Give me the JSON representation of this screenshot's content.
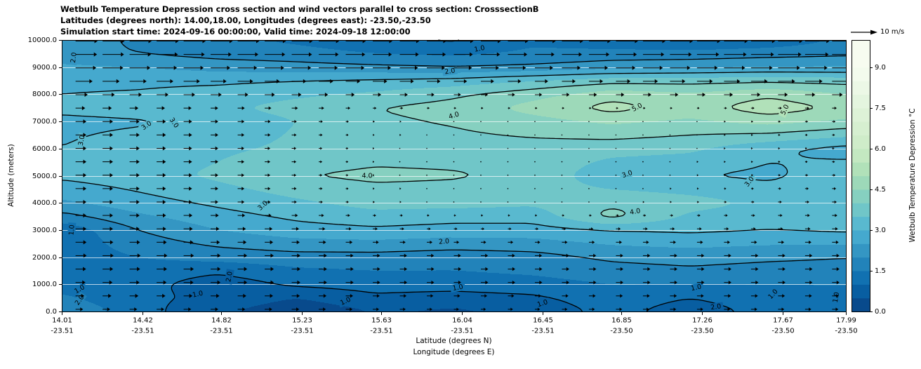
{
  "title": {
    "line1": "Wetbulb Temperature Depression cross section and wind vectors parallel to cross section: CrosssectionB",
    "line2": "Latitudes (degrees north): 14.00,18.00, Longitudes (degrees east): -23.50,-23.50",
    "line3": "Simulation start time: 2024-09-16 00:00:00, Valid time: 2024-09-18 12:00:00"
  },
  "axes": {
    "ylabel": "Altitude (meters)",
    "xlabel_line1": "Latitude (degrees N)",
    "xlabel_line2": "Longitude (degrees E)",
    "y_ticks": [
      "0.0",
      "1000.0",
      "2000.0",
      "3000.0",
      "4000.0",
      "5000.0",
      "6000.0",
      "7000.0",
      "8000.0",
      "9000.0",
      "10000.0"
    ],
    "y_tick_values": [
      0,
      1000,
      2000,
      3000,
      4000,
      5000,
      6000,
      7000,
      8000,
      9000,
      10000
    ],
    "x_ticks_lat": [
      "14.01",
      "14.42",
      "14.82",
      "15.23",
      "15.63",
      "16.04",
      "16.45",
      "16.85",
      "17.26",
      "17.67",
      "17.99"
    ],
    "x_ticks_lon": [
      "-23.51",
      "-23.51",
      "-23.51",
      "-23.51",
      "-23.51",
      "-23.51",
      "-23.51",
      "-23.50",
      "-23.50",
      "-23.50",
      "-23.50"
    ],
    "x_tick_values": [
      14.01,
      14.42,
      14.82,
      15.23,
      15.63,
      16.04,
      16.45,
      16.85,
      17.26,
      17.67,
      17.99
    ]
  },
  "colorbar": {
    "label": "Wetbulb Temperature Depression °C",
    "ticks": [
      "0.0",
      "1.5",
      "3.0",
      "4.5",
      "6.0",
      "7.5",
      "9.0"
    ],
    "tick_values": [
      0,
      1.5,
      3.0,
      4.5,
      6.0,
      7.5,
      9.0
    ],
    "range": [
      0,
      10
    ]
  },
  "quiver_legend": {
    "label": "10 m/s",
    "speed_ms": 10
  },
  "chart_data": {
    "type": "heatmap",
    "title": "Wetbulb Temperature Depression cross section and wind vectors parallel to cross section: CrosssectionB",
    "xlabel": "Latitude (degrees N) / Longitude (degrees E)",
    "ylabel": "Altitude (meters)",
    "colorbar_label": "Wetbulb Temperature Depression °C",
    "x_range": [
      14.01,
      17.99
    ],
    "y_range": [
      0,
      10000
    ],
    "fill_level_step": 0.5,
    "contour_levels": [
      1,
      2,
      3,
      4,
      5
    ],
    "colormap": [
      [
        0,
        "#084081"
      ],
      [
        1,
        "#0868ac"
      ],
      [
        2,
        "#2b8cbe"
      ],
      [
        3,
        "#4eb3d3"
      ],
      [
        4,
        "#7bccc4"
      ],
      [
        5,
        "#a8ddb5"
      ],
      [
        6,
        "#ccebc5"
      ],
      [
        7.5,
        "#e0f3db"
      ],
      [
        9,
        "#f7fcf0"
      ]
    ],
    "x_columns": [
      14.0,
      14.4,
      14.8,
      15.2,
      15.6,
      16.0,
      16.4,
      16.8,
      17.2,
      17.6,
      18.0
    ],
    "y_levels": [
      0,
      500,
      1000,
      1500,
      2000,
      3000,
      3500,
      4000,
      5000,
      6000,
      7000,
      7500,
      8000,
      8500,
      9000,
      9500,
      10000
    ],
    "field": [
      [
        2.0,
        1.2,
        0.6,
        0.1,
        0.5,
        0.4,
        0.6,
        1.2,
        0.7,
        1.2,
        1.5
      ],
      [
        1.6,
        1.1,
        0.9,
        0.5,
        0.9,
        0.8,
        0.9,
        1.3,
        1.0,
        1.3,
        1.4
      ],
      [
        1.3,
        1.2,
        0.7,
        1.1,
        1.2,
        1.2,
        1.3,
        1.5,
        1.5,
        1.5,
        1.5
      ],
      [
        1.2,
        1.3,
        1.1,
        1.4,
        1.5,
        1.5,
        1.6,
        1.8,
        1.9,
        1.8,
        1.8
      ],
      [
        1.2,
        1.5,
        1.7,
        1.8,
        1.8,
        1.7,
        1.8,
        2.1,
        2.2,
        2.1,
        2.0
      ],
      [
        1.1,
        2.0,
        2.5,
        2.8,
        2.9,
        2.8,
        2.8,
        3.0,
        3.1,
        3.0,
        3.1
      ],
      [
        1.8,
        2.4,
        2.8,
        3.1,
        3.3,
        3.2,
        3.2,
        4.2,
        3.4,
        3.2,
        3.2
      ],
      [
        2.4,
        2.8,
        3.1,
        3.4,
        3.7,
        3.7,
        3.6,
        3.9,
        3.7,
        3.4,
        3.4
      ],
      [
        3.1,
        3.3,
        3.6,
        4.0,
        4.1,
        4.05,
        3.9,
        3.1,
        3.0,
        2.9,
        3.3
      ],
      [
        3.0,
        3.2,
        3.4,
        3.6,
        3.8,
        3.8,
        3.8,
        3.7,
        3.6,
        3.1,
        2.8
      ],
      [
        2.9,
        2.95,
        3.1,
        3.5,
        3.9,
        4.05,
        4.3,
        4.6,
        4.4,
        4.7,
        4.4
      ],
      [
        3.1,
        3.2,
        3.4,
        3.7,
        4.0,
        4.2,
        4.7,
        5.2,
        4.8,
        5.3,
        4.9
      ],
      [
        3.0,
        3.05,
        3.2,
        3.4,
        3.6,
        3.9,
        4.3,
        4.8,
        4.6,
        4.9,
        4.5
      ],
      [
        2.9,
        2.9,
        2.9,
        3.0,
        3.1,
        3.2,
        3.5,
        3.8,
        3.8,
        3.9,
        3.8
      ],
      [
        2.6,
        2.5,
        2.3,
        2.2,
        2.1,
        2.0,
        2.1,
        2.3,
        2.4,
        2.5,
        2.5
      ],
      [
        2.2,
        2.0,
        1.8,
        1.7,
        1.5,
        1.4,
        1.6,
        1.7,
        1.7,
        1.8,
        1.9
      ],
      [
        2.3,
        1.9,
        1.6,
        1.4,
        1.1,
        0.9,
        1.4,
        1.1,
        0.9,
        1.1,
        1.6
      ]
    ],
    "wind_y_levels": [
      0,
      1000,
      2000,
      3000,
      4000,
      5000,
      6000,
      7000,
      7500,
      8000,
      8500,
      9000,
      10000
    ],
    "wind_u": [
      [
        3,
        3,
        3,
        3,
        2.5,
        2,
        2,
        2.5,
        2.5,
        2.5,
        2.5
      ],
      [
        4,
        4,
        4,
        3.5,
        3,
        3,
        3,
        3,
        3,
        3,
        3
      ],
      [
        4.5,
        4.5,
        4,
        3.5,
        3,
        3,
        3,
        3,
        3,
        3,
        3
      ],
      [
        4.5,
        4,
        3.5,
        3,
        2,
        1.5,
        1.5,
        2,
        2,
        2,
        2.5
      ],
      [
        4.5,
        4,
        3,
        2,
        0.8,
        0.4,
        0.4,
        0.5,
        0.8,
        1.5,
        2
      ],
      [
        4.5,
        4,
        3,
        1.8,
        0.6,
        0.3,
        0.3,
        0.4,
        0.6,
        1,
        1.5
      ],
      [
        4.5,
        4,
        3,
        1.8,
        0.6,
        0.3,
        0.3,
        0.3,
        0.5,
        0.8,
        1
      ],
      [
        4.5,
        4,
        3,
        2,
        0.8,
        0.4,
        0.4,
        0.4,
        0.5,
        1,
        1.5
      ],
      [
        4,
        3.5,
        3,
        2.5,
        1.5,
        1,
        1,
        1,
        1,
        1.5,
        2
      ],
      [
        5,
        5,
        4.5,
        4,
        3.5,
        3,
        3,
        3.5,
        3.5,
        4,
        4.5
      ],
      [
        7,
        7,
        6.5,
        6,
        6,
        5.5,
        5.5,
        6,
        6.5,
        7,
        7.5
      ],
      [
        8.5,
        8.5,
        8,
        8,
        7.5,
        7.5,
        7.5,
        8,
        8.5,
        9,
        9.5
      ],
      [
        9,
        9,
        9,
        8.5,
        8,
        8,
        8.5,
        9,
        9.5,
        10,
        10
      ]
    ],
    "contour_labels": [
      {
        "v": "2.0",
        "x": 14.07,
        "y": 9350,
        "r": -83
      },
      {
        "v": "3.0",
        "x": 14.11,
        "y": 6300,
        "r": -80
      },
      {
        "v": "3.0",
        "x": 14.44,
        "y": 6850,
        "r": -35
      },
      {
        "v": "3.0",
        "x": 14.58,
        "y": 6950,
        "r": 55
      },
      {
        "v": "2.0",
        "x": 15.98,
        "y": 8850,
        "r": -8
      },
      {
        "v": "1.0",
        "x": 16.13,
        "y": 9680,
        "r": -12
      },
      {
        "v": "4.0",
        "x": 16.0,
        "y": 7220,
        "r": -18
      },
      {
        "v": "5.0",
        "x": 16.93,
        "y": 7520,
        "r": -28
      },
      {
        "v": "5.0",
        "x": 17.68,
        "y": 7430,
        "r": -65
      },
      {
        "v": "4.0",
        "x": 15.56,
        "y": 5000,
        "r": 0
      },
      {
        "v": "3.0",
        "x": 15.03,
        "y": 3900,
        "r": -42
      },
      {
        "v": "3.0",
        "x": 16.88,
        "y": 5060,
        "r": -20
      },
      {
        "v": "3.0",
        "x": 17.5,
        "y": 4780,
        "r": -52
      },
      {
        "v": "4.0",
        "x": 16.92,
        "y": 3680,
        "r": -10
      },
      {
        "v": "2.0",
        "x": 15.95,
        "y": 2580,
        "r": -5
      },
      {
        "v": "1.0",
        "x": 14.06,
        "y": 3000,
        "r": -85
      },
      {
        "v": "1.0",
        "x": 14.1,
        "y": 820,
        "r": -30
      },
      {
        "v": "2.0",
        "x": 14.1,
        "y": 420,
        "r": -55
      },
      {
        "v": "2.0",
        "x": 14.86,
        "y": 1280,
        "r": -80
      },
      {
        "v": "1.0",
        "x": 14.7,
        "y": 640,
        "r": -12
      },
      {
        "v": "1.0",
        "x": 15.45,
        "y": 380,
        "r": -25
      },
      {
        "v": "1.0",
        "x": 16.02,
        "y": 880,
        "r": -10
      },
      {
        "v": "1.0",
        "x": 16.45,
        "y": 300,
        "r": -18
      },
      {
        "v": "1.0",
        "x": 17.23,
        "y": 880,
        "r": -12
      },
      {
        "v": "2.0",
        "x": 17.33,
        "y": 170,
        "r": -8
      },
      {
        "v": "1.0",
        "x": 17.62,
        "y": 640,
        "r": -48
      },
      {
        "v": "1.0",
        "x": 17.94,
        "y": 520,
        "r": -80
      }
    ]
  }
}
